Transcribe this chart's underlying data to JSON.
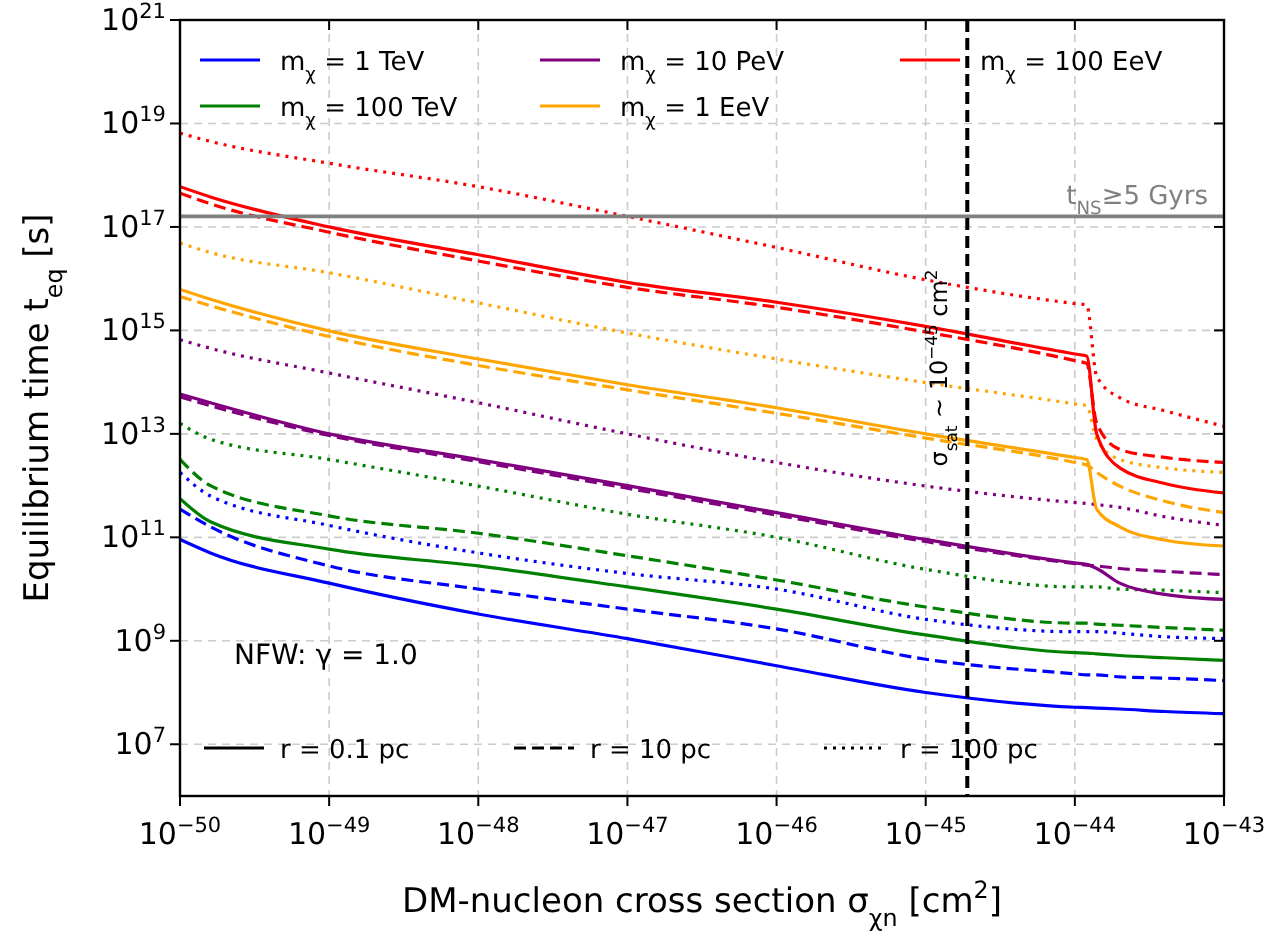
{
  "chart_data": {
    "type": "line",
    "xlabel": "DM-nucleon cross section σ$_{χn}$ [cm$^{2}$]",
    "ylabel": "Equilibrium time t$_{eq}$ [s]",
    "log": "xy",
    "grid": true,
    "legend": "top",
    "xlim": [
      1e-50,
      1e-43
    ],
    "ylim": [
      1000000.0,
      1e+21
    ],
    "xticks": [
      {
        "value": 1e-50,
        "label": "10$^{−50}$"
      },
      {
        "value": 1e-49,
        "label": "10$^{−49}$"
      },
      {
        "value": 1e-48,
        "label": "10$^{−48}$"
      },
      {
        "value": 1e-47,
        "label": "10$^{−47}$"
      },
      {
        "value": 1e-46,
        "label": "10$^{−46}$"
      },
      {
        "value": 1e-45,
        "label": "10$^{−45}$"
      },
      {
        "value": 1e-44,
        "label": "10$^{−44}$"
      },
      {
        "value": 1e-43,
        "label": "10$^{−43}$"
      }
    ],
    "yticks": [
      {
        "value": 10000000.0,
        "label": "10$^{7}$"
      },
      {
        "value": 1000000000.0,
        "label": "10$^{9}$"
      },
      {
        "value": 100000000000.0,
        "label": "10$^{11}$"
      },
      {
        "value": 10000000000000.0,
        "label": "10$^{13}$"
      },
      {
        "value": 1000000000000000.0,
        "label": "10$^{15}$"
      },
      {
        "value": 1e+17,
        "label": "10$^{17}$"
      },
      {
        "value": 1e+19,
        "label": "10$^{19}$"
      },
      {
        "value": 1e+21,
        "label": "10$^{21}$"
      }
    ],
    "x": [
      1e-50,
      1.6e-50,
      1e-49,
      1e-48,
      1e-47,
      1e-46,
      1e-45,
      1e-44,
      1.2e-44,
      1.4e-44,
      2e-44,
      4e-44,
      1e-43
    ],
    "series": [
      {
        "name": "m$_{χ}$ = 1 TeV",
        "color": "#0000ff",
        "line_style": "solid",
        "values": [
          91000000000.0,
          50000000000.0,
          13000000000.0,
          3300000000.0,
          1100000000.0,
          330000000.0,
          100000000.0,
          52000000.0,
          51000000.0,
          50000000.0,
          48000000.0,
          43000000.0,
          39000000.0
        ]
      },
      {
        "color": "#0000ff",
        "line_style": "dashed",
        "values": [
          350000000000.0,
          160000000000.0,
          28000000000.0,
          10000000000.0,
          4100000000.0,
          1700000000.0,
          440000000.0,
          230000000.0,
          220000000.0,
          220000000.0,
          200000000.0,
          190000000.0,
          170000000.0
        ]
      },
      {
        "color": "#0000ff",
        "line_style": "dotted",
        "values": [
          1800000000000.0,
          630000000000.0,
          170000000000.0,
          50000000000.0,
          20000000000.0,
          10000000000.0,
          2600000000.0,
          1500000000.0,
          1500000000.0,
          1500000000.0,
          1400000000.0,
          1200000000.0,
          1100000000.0
        ]
      },
      {
        "name": "m$_{χ}$ = 100 TeV",
        "color": "#008000",
        "line_style": "solid",
        "values": [
          560000000000.0,
          200000000000.0,
          59000000000.0,
          28000000000.0,
          11000000000.0,
          4100000000.0,
          1300000000.0,
          590000000.0,
          580000000.0,
          560000000.0,
          520000000.0,
          470000000.0,
          420000000.0
        ]
      },
      {
        "color": "#008000",
        "line_style": "dashed",
        "values": [
          3200000000000.0,
          1000000000000.0,
          260000000000.0,
          120000000000.0,
          44000000000.0,
          15000000000.0,
          4500000000.0,
          2200000000.0,
          2200000000.0,
          2100000000.0,
          2000000000.0,
          1800000000.0,
          1600000000.0
        ]
      },
      {
        "color": "#008000",
        "line_style": "dotted",
        "values": [
          16000000000000.0,
          7900000000000.0,
          3200000000000.0,
          980000000000.0,
          280000000000.0,
          100000000000.0,
          24000000000.0,
          11000000000.0,
          11000000000.0,
          11000000000.0,
          10000000000.0,
          9500000000.0,
          8500000000.0
        ]
      },
      {
        "name": "m$_{χ}$ = 10 PeV",
        "color": "#800080",
        "line_style": "solid",
        "values": [
          59000000000000.0,
          40000000000000.0,
          10000000000000.0,
          3200000000000.0,
          1000000000000.0,
          300000000000.0,
          91000000000.0,
          32000000000.0,
          30000000000.0,
          25000000000.0,
          13000000000.0,
          7900000000.0,
          6300000000.0
        ]
      },
      {
        "color": "#800080",
        "line_style": "dashed",
        "values": [
          52000000000000.0,
          35000000000000.0,
          9300000000000.0,
          2900000000000.0,
          890000000000.0,
          270000000000.0,
          83000000000.0,
          31000000000.0,
          29000000000.0,
          28000000000.0,
          25000000000.0,
          22000000000.0,
          19000000000.0
        ]
      },
      {
        "color": "#800080",
        "line_style": "dotted",
        "values": [
          660000000000000.0,
          450000000000000.0,
          150000000000000.0,
          40000000000000.0,
          10000000000000.0,
          2800000000000.0,
          980000000000.0,
          470000000000.0,
          450000000000.0,
          430000000000.0,
          380000000000.0,
          250000000000.0,
          170000000000.0
        ]
      },
      {
        "name": "m$_{χ}$ = 1 EeV",
        "color": "#ffa500",
        "line_style": "solid",
        "values": [
          6200000000000000.0,
          4000000000000000.0,
          980000000000000.0,
          280000000000000.0,
          89000000000000.0,
          32000000000000.0,
          10000000000000.0,
          3500000000000.0,
          3200000000000.0,
          350000000000.0,
          160000000000.0,
          89000000000.0,
          68000000000.0
        ]
      },
      {
        "color": "#ffa500",
        "line_style": "dashed",
        "values": [
          4500000000000000.0,
          3000000000000000.0,
          760000000000000.0,
          210000000000000.0,
          71000000000000.0,
          25000000000000.0,
          8300000000000.0,
          2800000000000.0,
          2500000000000.0,
          1800000000000.0,
          980000000000.0,
          500000000000.0,
          300000000000.0
        ]
      },
      {
        "color": "#ffa500",
        "line_style": "dotted",
        "values": [
          4.9e+16,
          3.2e+16,
          1.3e+16,
          3400000000000000.0,
          890000000000000.0,
          280000000000000.0,
          98000000000000.0,
          38000000000000.0,
          35000000000000.0,
          7800000000000.0,
          3200000000000.0,
          2200000000000.0,
          1800000000000.0
        ]
      },
      {
        "name": "m$_{χ}$ = 100 EeV",
        "color": "#ff0000",
        "line_style": "solid",
        "values": [
          6e+17,
          3.8e+17,
          1e+17,
          2.9e+16,
          8500000000000000.0,
          3500000000000000.0,
          1200000000000000.0,
          350000000000000.0,
          320000000000000.0,
          10000000000000.0,
          2200000000000.0,
          1100000000000.0,
          720000000000.0
        ]
      },
      {
        "color": "#ff0000",
        "line_style": "dashed",
        "values": [
          4.5e+17,
          2.8e+17,
          7.9e+16,
          2.2e+16,
          6800000000000000.0,
          2800000000000000.0,
          930000000000000.0,
          260000000000000.0,
          230000000000000.0,
          16000000000000.0,
          5000000000000.0,
          3500000000000.0,
          2800000000000.0
        ]
      },
      {
        "color": "#ff0000",
        "line_style": "dotted",
        "values": [
          6.5e+18,
          4.5e+18,
          1.7e+18,
          6e+17,
          1.6e+17,
          4e+16,
          9500000000000000.0,
          3300000000000000.0,
          3100000000000000.0,
          130000000000000.0,
          50000000000000.0,
          28000000000000.0,
          14000000000000.0
        ]
      }
    ],
    "ref_lines": [
      {
        "axis": "y",
        "value": 1.6e+17,
        "label": "t$_{NS}$≥5 Gyrs",
        "color": "#808080",
        "line_style": "solid"
      },
      {
        "axis": "x",
        "value": 1.9e-45,
        "label": "σ$_{sat}$ ∼ 10$^{−45}$ cm$^{2}$",
        "color": "#000000",
        "line_style": "dashed"
      }
    ],
    "annotations": [
      "NFW: γ = 1.0",
      "r = 0.1 pc",
      "r = 10 pc",
      "r = 100 pc"
    ]
  }
}
